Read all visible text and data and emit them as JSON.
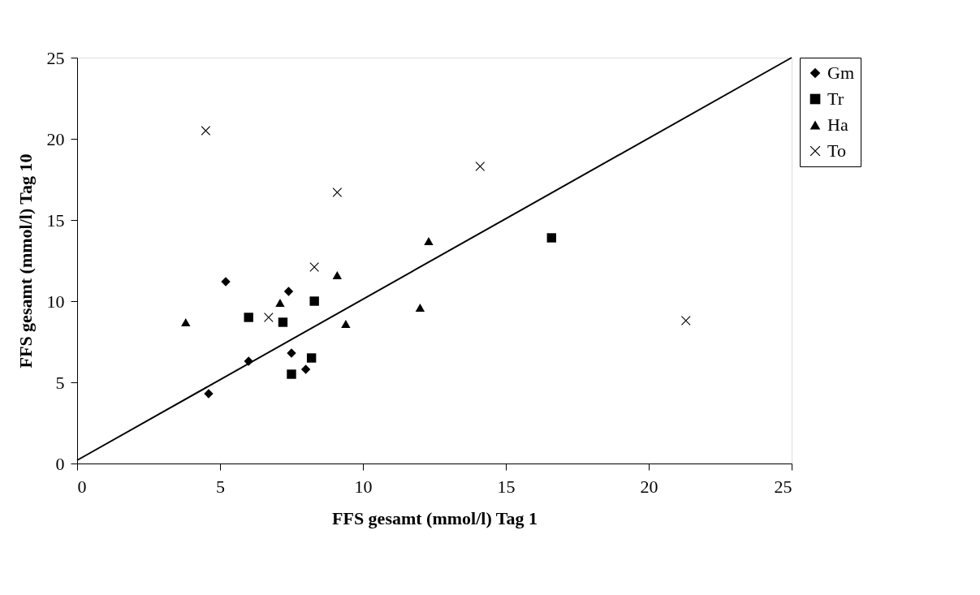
{
  "chart_data": {
    "type": "scatter",
    "xlabel": "FFS gesamt (mmol/l) Tag 1",
    "ylabel": "FFS gesamt (mmol/l) Tag 10",
    "xlim": [
      0,
      25
    ],
    "ylim": [
      0,
      25
    ],
    "xticks": [
      0,
      5,
      10,
      15,
      20,
      25
    ],
    "yticks": [
      0,
      5,
      10,
      15,
      20,
      25
    ],
    "grid": false,
    "legend": "right",
    "series": [
      {
        "name": "Gm",
        "color": "#000000",
        "marker": "diamond",
        "x": [
          4.6,
          6.0,
          5.2,
          7.4,
          7.5,
          8.0
        ],
        "values": [
          4.3,
          6.3,
          11.2,
          10.6,
          6.8,
          5.8
        ]
      },
      {
        "name": "Tr",
        "color": "#000000",
        "marker": "square",
        "x": [
          6.0,
          7.2,
          8.3,
          7.5,
          8.2,
          16.6
        ],
        "values": [
          9.0,
          8.7,
          10.0,
          5.5,
          6.5,
          13.9
        ]
      },
      {
        "name": "Ha",
        "color": "#000000",
        "marker": "triangle",
        "x": [
          3.8,
          7.1,
          9.1,
          9.4,
          12.0,
          12.3
        ],
        "values": [
          8.7,
          9.9,
          11.6,
          8.6,
          9.6,
          13.7
        ]
      },
      {
        "name": "To",
        "color": "#000000",
        "marker": "cross",
        "x": [
          4.5,
          9.1,
          14.1,
          8.3,
          6.7,
          21.3
        ],
        "values": [
          20.5,
          16.7,
          18.3,
          12.1,
          9.0,
          8.8
        ]
      },
      {
        "type": "line",
        "color": "#000000",
        "line_style": "solid",
        "x": [
          0,
          25
        ],
        "values": [
          0.2,
          25
        ]
      }
    ]
  }
}
